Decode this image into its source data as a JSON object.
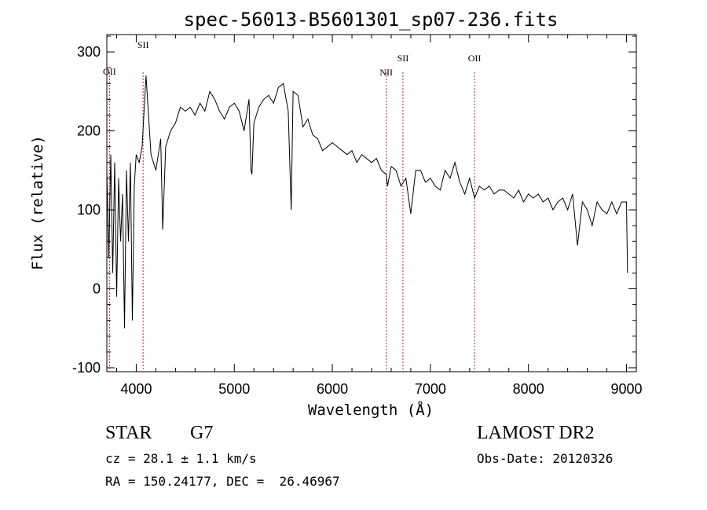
{
  "chart_data": {
    "type": "line",
    "title": "spec-56013-B5601301_sp07-236.fits",
    "xlabel": "Wavelength (Å)",
    "ylabel": "Flux (relative)",
    "xlim": [
      3700,
      9100
    ],
    "ylim": [
      -105,
      322
    ],
    "xticks": [
      4000,
      5000,
      6000,
      7000,
      8000,
      9000
    ],
    "yticks": [
      -100,
      0,
      100,
      200,
      300
    ],
    "grid": false,
    "series": [
      {
        "x": [
          3700,
          3720,
          3740,
          3760,
          3780,
          3800,
          3820,
          3840,
          3860,
          3880,
          3900,
          3920,
          3940,
          3960,
          3980,
          4000,
          4030,
          4060,
          4100,
          4150,
          4200,
          4250,
          4270,
          4300,
          4350,
          4400,
          4450,
          4500,
          4550,
          4600,
          4650,
          4700,
          4750,
          4800,
          4850,
          4900,
          4950,
          5000,
          5050,
          5100,
          5150,
          5170,
          5180,
          5200,
          5250,
          5300,
          5350,
          5400,
          5450,
          5500,
          5550,
          5580,
          5600,
          5650,
          5700,
          5750,
          5800,
          5850,
          5900,
          5950,
          6000,
          6050,
          6100,
          6150,
          6200,
          6250,
          6300,
          6350,
          6400,
          6450,
          6500,
          6550,
          6563,
          6600,
          6650,
          6700,
          6750,
          6800,
          6850,
          6900,
          6950,
          7000,
          7050,
          7100,
          7150,
          7200,
          7250,
          7300,
          7350,
          7400,
          7450,
          7500,
          7550,
          7600,
          7650,
          7700,
          7750,
          7800,
          7850,
          7900,
          7950,
          8000,
          8050,
          8100,
          8150,
          8200,
          8250,
          8300,
          8350,
          8400,
          8450,
          8500,
          8550,
          8600,
          8650,
          8700,
          8750,
          8800,
          8850,
          8900,
          8950,
          9000,
          9010
        ],
        "y": [
          150,
          40,
          170,
          20,
          160,
          -10,
          140,
          60,
          120,
          -50,
          150,
          60,
          160,
          -40,
          130,
          170,
          160,
          180,
          270,
          170,
          150,
          190,
          75,
          180,
          200,
          210,
          230,
          225,
          230,
          220,
          235,
          225,
          250,
          240,
          225,
          215,
          230,
          235,
          225,
          200,
          240,
          150,
          145,
          210,
          230,
          240,
          245,
          235,
          255,
          260,
          225,
          100,
          250,
          245,
          205,
          215,
          195,
          190,
          175,
          180,
          185,
          180,
          175,
          170,
          175,
          160,
          170,
          165,
          160,
          165,
          150,
          145,
          130,
          155,
          150,
          130,
          140,
          95,
          150,
          150,
          135,
          140,
          130,
          125,
          150,
          140,
          160,
          135,
          120,
          140,
          115,
          130,
          125,
          130,
          120,
          125,
          125,
          120,
          115,
          125,
          110,
          120,
          115,
          120,
          110,
          115,
          100,
          110,
          115,
          100,
          120,
          55,
          110,
          100,
          80,
          110,
          100,
          95,
          110,
          95,
          110,
          110,
          20
        ]
      }
    ],
    "emission_lines": [
      {
        "label": "OII",
        "x": 3727
      },
      {
        "label": "SII",
        "x": 4070
      },
      {
        "label": "NII",
        "x": 6550
      },
      {
        "label": "SII",
        "x": 6720
      },
      {
        "label": "OII",
        "x": 7450
      }
    ]
  },
  "info": {
    "class": "STAR",
    "subclass": "G7",
    "survey": "LAMOST DR2",
    "cz": "cz = 28.1 ± 1.1 km/s",
    "obs_date": "Obs-Date: 20120326",
    "radec": "RA = 150.24177, DEC =  26.46967"
  },
  "colors": {
    "spectrum": "#000000",
    "emission_line": "#cc2222",
    "axes": "#000000"
  }
}
